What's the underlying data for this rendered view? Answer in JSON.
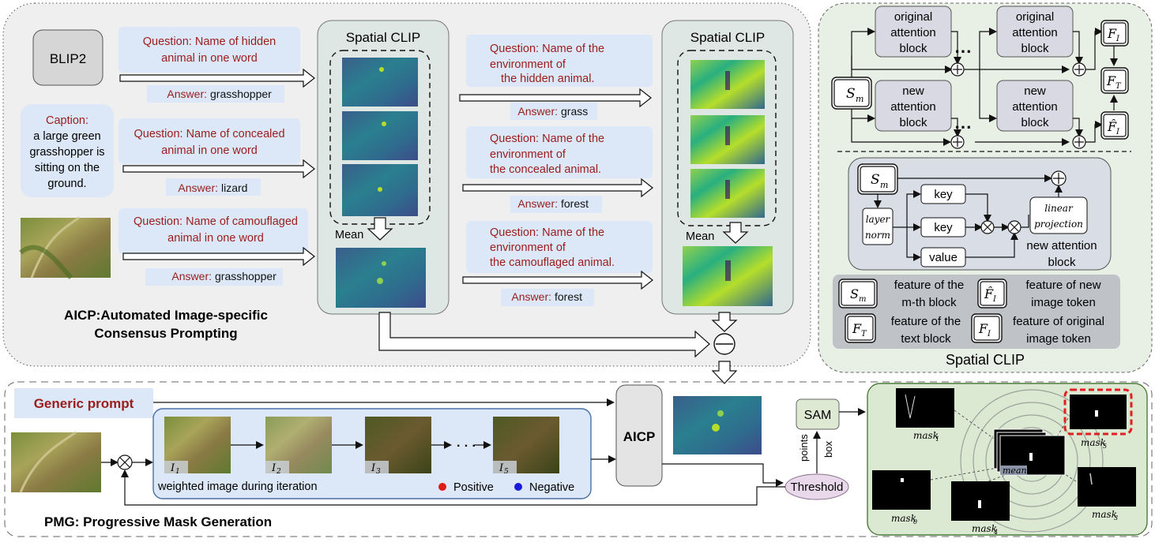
{
  "colors": {
    "question_red": "#9b1c1c",
    "light_blue_box": "#dce8f7",
    "green_panel": "#dce9d2",
    "grey_panel": "#efefef",
    "negative_dot": "#1a1adb",
    "positive_dot": "#e01919",
    "highlight_dash": "#e02020"
  },
  "aicp": {
    "title_line1": "AICP:Automated Image-specific",
    "title_line2": "Consensus Prompting",
    "blip2": "BLIP2",
    "caption": [
      "Caption:",
      "a large green",
      "grasshopper is",
      "sitting on the",
      "ground."
    ],
    "questions_left": [
      {
        "lines": [
          "Question: Name of hidden",
          "animal in one word"
        ],
        "answer_label": "Answer:",
        "answer": "grasshopper"
      },
      {
        "lines": [
          "Question: Name of concealed",
          "animal in one word"
        ],
        "answer_label": "Answer:",
        "answer": "lizard"
      },
      {
        "lines": [
          "Question: Name of camouflaged",
          "animal in one word"
        ],
        "answer_label": "Answer:",
        "answer": "grasshopper"
      }
    ],
    "questions_right": [
      {
        "lines": [
          "Question: Name of the",
          "environment of",
          "the hidden animal."
        ],
        "answer_label": "Answer:",
        "answer": "grass"
      },
      {
        "lines": [
          "Question: Name of the",
          "environment of",
          "the concealed animal."
        ],
        "answer_label": "Answer:",
        "answer": "forest"
      },
      {
        "lines": [
          "Question: Name of the",
          "environment of",
          "the camouflaged animal."
        ],
        "answer_label": "Answer:",
        "answer": "forest"
      }
    ],
    "spatial_clip_label": "Spatial CLIP",
    "mean_label": "Mean"
  },
  "spatial_clip_panel": {
    "title": "Spatial CLIP",
    "blocks": {
      "original_attention": [
        "original",
        "attention",
        "block"
      ],
      "new_attention": [
        "new",
        "attention",
        "block"
      ]
    },
    "symbols": {
      "s_m": {
        "base": "S",
        "sub": "m"
      },
      "f_i": {
        "base": "F",
        "sub": "I"
      },
      "f_t": {
        "base": "F",
        "sub": "T"
      },
      "f_i_hat": {
        "base": "F̂",
        "sub": "I"
      }
    },
    "ellipsis": "⋯",
    "inner": {
      "layer_norm": [
        "layer",
        "norm"
      ],
      "key": "key",
      "value": "value",
      "linear_projection": [
        "linear",
        "projection"
      ],
      "caption": [
        "new attention",
        "block"
      ]
    },
    "legend": [
      {
        "symbol": "s_m",
        "text": [
          "feature of the",
          "m-th block"
        ]
      },
      {
        "symbol": "f_i_hat",
        "text": [
          "feature of new",
          "image token"
        ]
      },
      {
        "symbol": "f_t",
        "text": [
          "feature of the",
          "text block"
        ]
      },
      {
        "symbol": "f_i",
        "text": [
          "feature of original",
          "image token"
        ]
      }
    ]
  },
  "pmg": {
    "title": "PMG: Progressive Mask Generation",
    "generic_prompt": "Generic prompt",
    "aicp_box": "AICP",
    "iteration_caption": "weighted image during iteration",
    "frames": [
      {
        "base": "I",
        "sub": "1"
      },
      {
        "base": "I",
        "sub": "2"
      },
      {
        "base": "I",
        "sub": "3"
      },
      {
        "base": "I",
        "sub": "5"
      }
    ],
    "ellipsis": "· · ·",
    "positive": "Positive",
    "negative": "Negative",
    "sam": "SAM",
    "threshold": "Threshold",
    "points": "points",
    "box": "box",
    "masks": [
      {
        "base": "mask",
        "sub": "1"
      },
      {
        "base": "mask",
        "sub": "5"
      },
      {
        "base": "mean",
        "sub": ""
      },
      {
        "base": "mask",
        "sub": "0"
      },
      {
        "base": "mask",
        "sub": "4"
      },
      {
        "base": "mask",
        "sub": "3"
      }
    ]
  }
}
